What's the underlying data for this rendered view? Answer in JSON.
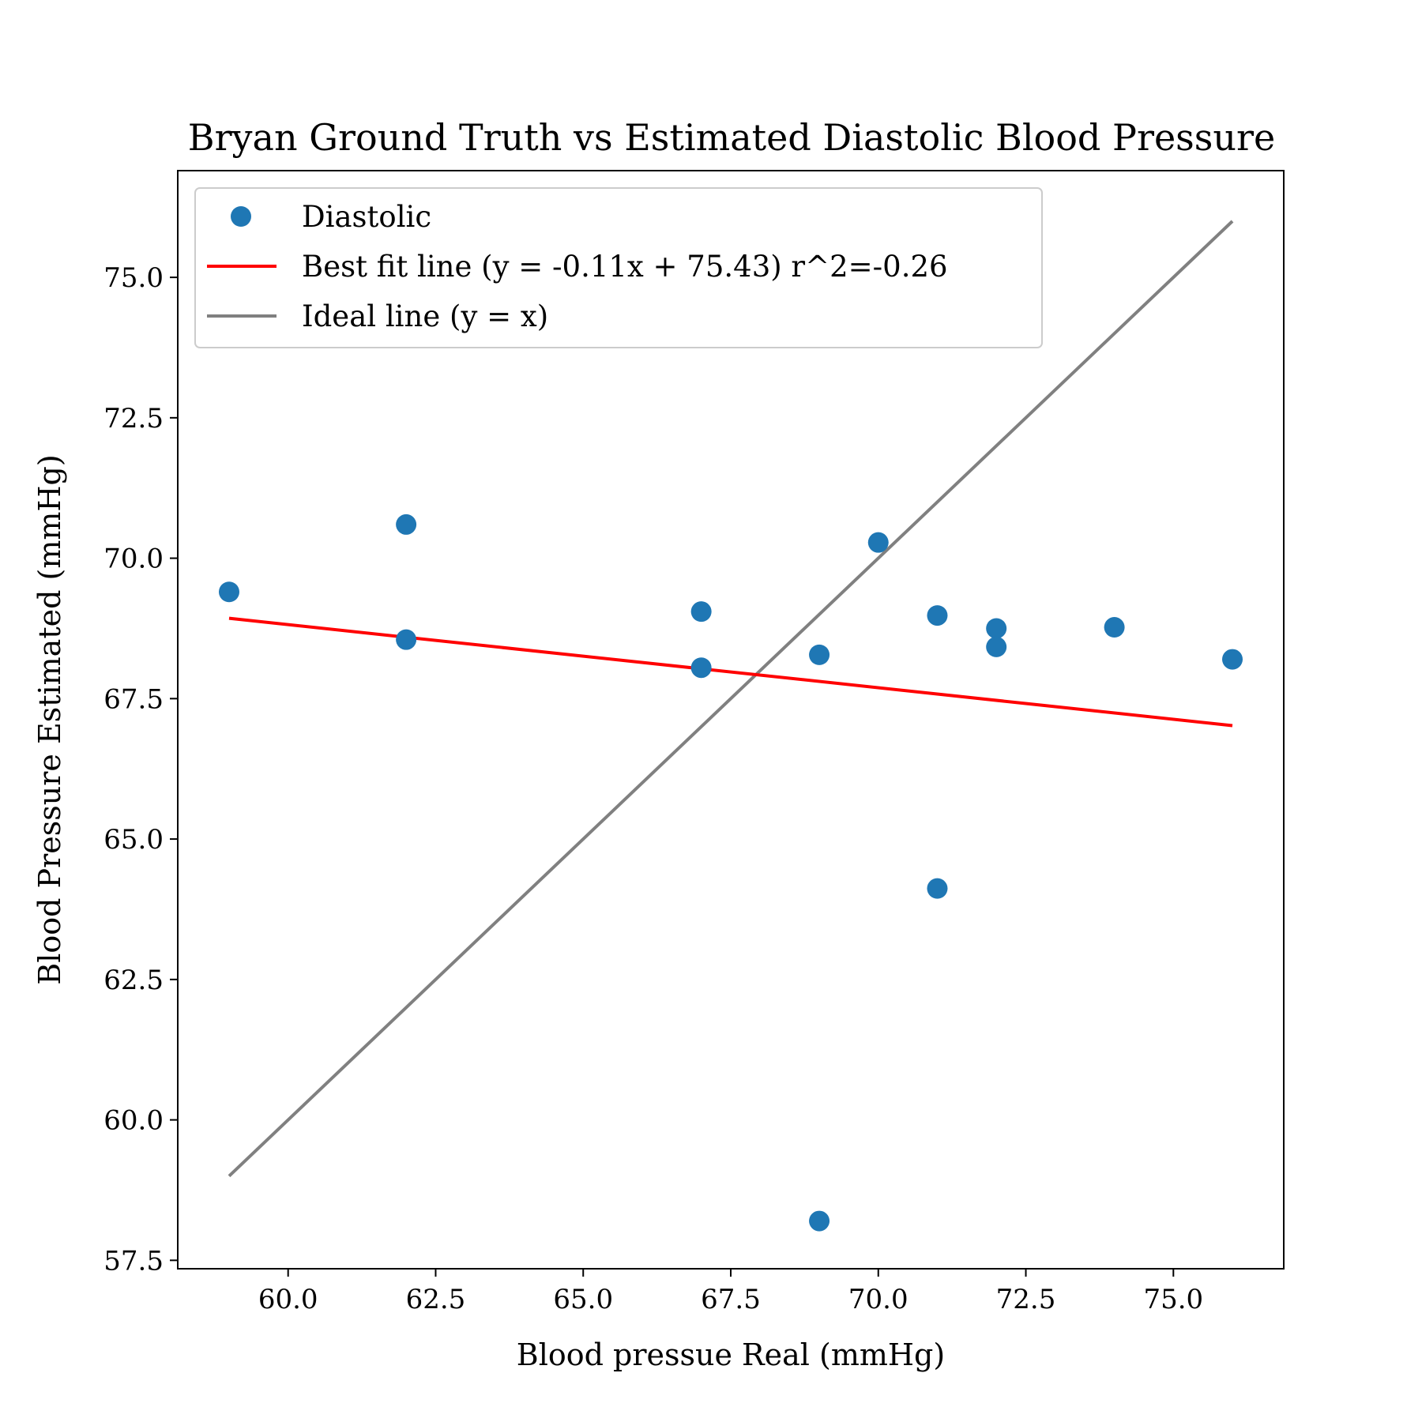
{
  "chart_data": {
    "type": "scatter",
    "title": "Bryan Ground Truth vs Estimated Diastolic Blood Pressure",
    "xlabel": "Blood pressue Real (mmHg)",
    "ylabel": "Blood Pressure Estimated (mmHg)",
    "xlim": [
      58.13,
      76.87
    ],
    "ylim": [
      57.35,
      76.9
    ],
    "xticks": [
      "60.0",
      "62.5",
      "65.0",
      "67.5",
      "70.0",
      "72.5",
      "75.0"
    ],
    "yticks": [
      "57.5",
      "60.0",
      "62.5",
      "65.0",
      "67.5",
      "70.0",
      "72.5",
      "75.0"
    ],
    "grid": false,
    "legend_position": "upper-left",
    "series": [
      {
        "name": "Diastolic",
        "kind": "scatter",
        "color": "#1f77b4",
        "points": [
          [
            59,
            69.4
          ],
          [
            62,
            70.6
          ],
          [
            62,
            68.55
          ],
          [
            67,
            69.05
          ],
          [
            67,
            68.05
          ],
          [
            69,
            68.28
          ],
          [
            69,
            58.2
          ],
          [
            70,
            70.28
          ],
          [
            71,
            68.98
          ],
          [
            71,
            64.12
          ],
          [
            72,
            68.75
          ],
          [
            72,
            68.42
          ],
          [
            74,
            68.77
          ],
          [
            76,
            68.2
          ]
        ]
      },
      {
        "name": "Best fit line (y = -0.11x + 75.43) r^2=-0.26",
        "kind": "line",
        "color": "#ff0000",
        "x": [
          59,
          76
        ],
        "y": [
          68.93,
          67.02
        ]
      },
      {
        "name": "Ideal line (y = x)",
        "kind": "line",
        "color": "#808080",
        "x": [
          59,
          76
        ],
        "y": [
          59,
          76
        ]
      }
    ]
  }
}
